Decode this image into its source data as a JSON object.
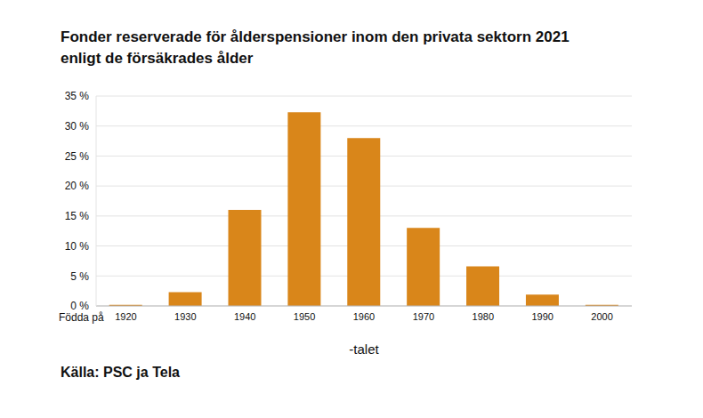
{
  "chart_data": {
    "type": "bar",
    "title": [
      "Fonder reserverade för ålderspensioner inom den privata sektorn 2021",
      "enligt de försäkrades ålder"
    ],
    "x_label_left": "Födda på",
    "xlabel": "-talet",
    "source": "Källa: PSC ja Tela",
    "categories": [
      "1920",
      "1930",
      "1940",
      "1950",
      "1960",
      "1970",
      "1980",
      "1990",
      "2000"
    ],
    "values": [
      0.2,
      2.3,
      16.0,
      32.3,
      28.0,
      13.0,
      6.6,
      1.9,
      0.2
    ],
    "color": "#d9861a",
    "ylim": [
      0,
      35
    ],
    "yticks": [
      {
        "value": 0,
        "label": "0 %"
      },
      {
        "value": 5,
        "label": "5 %"
      },
      {
        "value": 10,
        "label": "10 %"
      },
      {
        "value": 15,
        "label": "15 %"
      },
      {
        "value": 20,
        "label": "20 %"
      },
      {
        "value": 25,
        "label": "25 %"
      },
      {
        "value": 30,
        "label": "30 %"
      },
      {
        "value": 35,
        "label": "35 %"
      }
    ],
    "grid": true
  }
}
